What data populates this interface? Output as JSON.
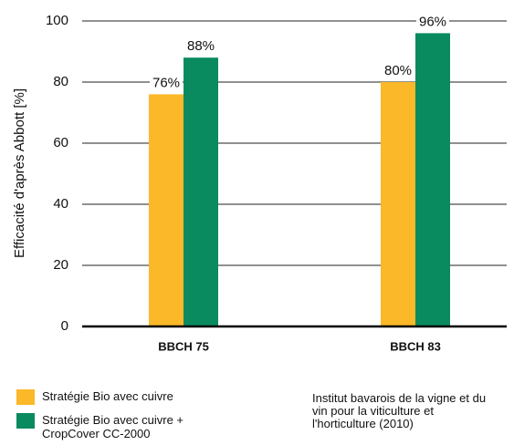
{
  "chart_data": {
    "type": "bar",
    "y_label": "Efficacité d'après Abbott [%]",
    "categories": [
      "BBCH 75",
      "BBCH 83"
    ],
    "series": [
      {
        "name": "Stratégie Bio avec cuivre",
        "color": "#fbb829",
        "values": [
          76,
          80
        ],
        "value_labels": [
          "76%",
          "80%"
        ]
      },
      {
        "name": "Stratégie Bio avec cuivre + CropCover CC-2000",
        "color": "#0a8a5f",
        "values": [
          88,
          96
        ],
        "value_labels": [
          "88%",
          "96%"
        ]
      }
    ],
    "ylim": [
      0,
      100
    ],
    "yticks": [
      0,
      20,
      40,
      60,
      80,
      100
    ],
    "grid": true,
    "source": "Institut bavarois de la vigne et du vin pour la viticulture et l'horticulture (2010)"
  }
}
